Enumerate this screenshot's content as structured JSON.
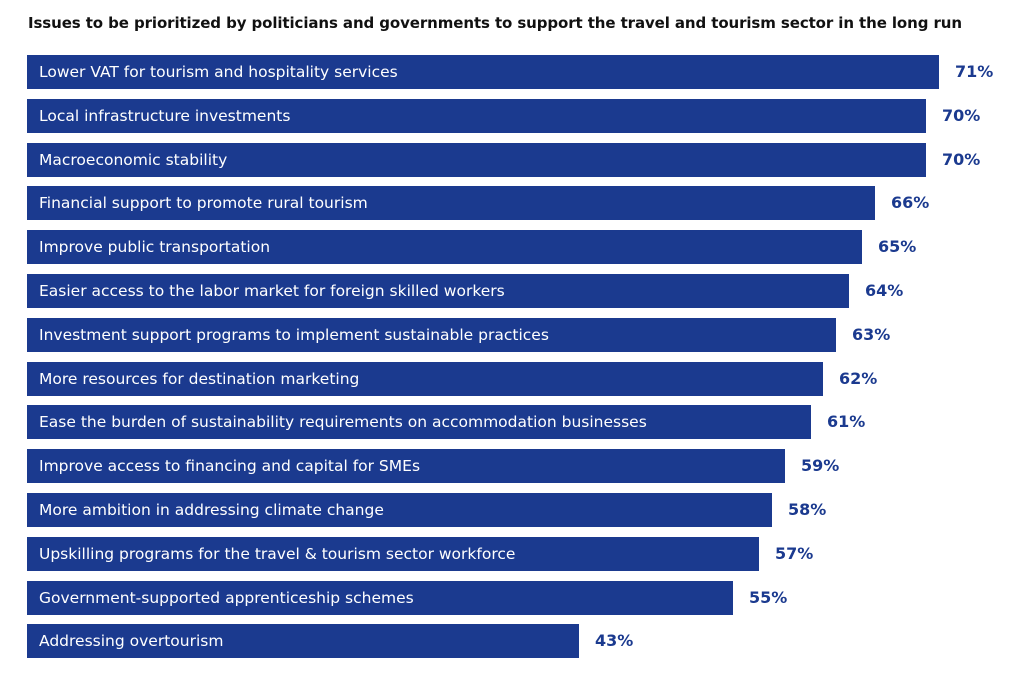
{
  "chart_data": {
    "type": "bar",
    "orientation": "horizontal",
    "title": "Issues to be prioritized by politicians and governments to support the travel and tourism sector in the long run",
    "xlabel": "",
    "ylabel": "",
    "unit": "%",
    "xlim": [
      0,
      71
    ],
    "grid": false,
    "legend": "none",
    "bar_color": "#1b3a8f",
    "label_color": "#1b3a8f",
    "categories": [
      "Lower VAT for tourism and hospitality services",
      "Local infrastructure investments",
      "Macroeconomic stability",
      "Financial support to promote rural tourism",
      "Improve public transportation",
      "Easier access to the labor market for foreign skilled workers",
      "Investment support programs to implement sustainable practices",
      "More resources for destination marketing",
      "Ease the burden of sustainability requirements on accommodation businesses",
      "Improve access to financing and capital for SMEs",
      "More ambition in addressing climate change",
      "Upskilling programs for the travel & tourism sector workforce",
      "Government-supported apprenticeship schemes",
      "Addressing overtourism"
    ],
    "values": [
      71,
      70,
      70,
      66,
      65,
      64,
      63,
      62,
      61,
      59,
      58,
      57,
      55,
      43
    ],
    "data_labels": [
      "71%",
      "70%",
      "70%",
      "66%",
      "65%",
      "64%",
      "63%",
      "62%",
      "61%",
      "59%",
      "58%",
      "57%",
      "55%",
      "43%"
    ]
  }
}
